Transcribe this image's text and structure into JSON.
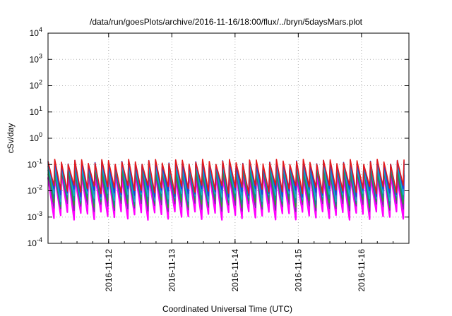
{
  "chart_data": {
    "type": "line",
    "title": "/data/run/goesPlots/archive/2016-11-16/18:00/flux/../bryn/5daysMars.plot",
    "xlabel": "Coordinated Universal Time (UTC)",
    "ylabel": "cSv/day",
    "yscale": "log",
    "ylim": [
      0.0001,
      10000
    ],
    "xlim": [
      "2016-11-11 01:00",
      "2016-11-16 18:00"
    ],
    "grid": true,
    "legend": "none",
    "y_ticks": [
      {
        "base": "10",
        "exp": "-4"
      },
      {
        "base": "10",
        "exp": "-3"
      },
      {
        "base": "10",
        "exp": "-2"
      },
      {
        "base": "10",
        "exp": "-1"
      },
      {
        "base": "10",
        "exp": "0"
      },
      {
        "base": "10",
        "exp": "1"
      },
      {
        "base": "10",
        "exp": "2"
      },
      {
        "base": "10",
        "exp": "3"
      },
      {
        "base": "10",
        "exp": "4"
      }
    ],
    "x_ticks": [
      "2016-11-12",
      "2016-11-13",
      "2016-11-14",
      "2016-11-15",
      "2016-11-16"
    ],
    "pattern": {
      "description": "sawtooth: sharp rise to peak then decay",
      "start": "2016-11-11 01:00",
      "period_hours": 2.55,
      "peaks": [
        0.13,
        0.12,
        0.1,
        0.09,
        0.075,
        0.06,
        0.048,
        0.04
      ],
      "troughs": [
        0.012,
        0.009,
        0.0075,
        0.006,
        0.0045,
        0.0035,
        0.0025,
        0.0012
      ]
    },
    "series": [
      {
        "color": "#e41a1c"
      },
      {
        "color": "#1f3fd6"
      },
      {
        "color": "#1c8ad8"
      },
      {
        "color": "#17b8c9"
      },
      {
        "color": "#0a8f8f"
      },
      {
        "color": "#2ca02c"
      },
      {
        "color": "#7b2aa8"
      },
      {
        "color": "#ff00ff"
      }
    ]
  }
}
